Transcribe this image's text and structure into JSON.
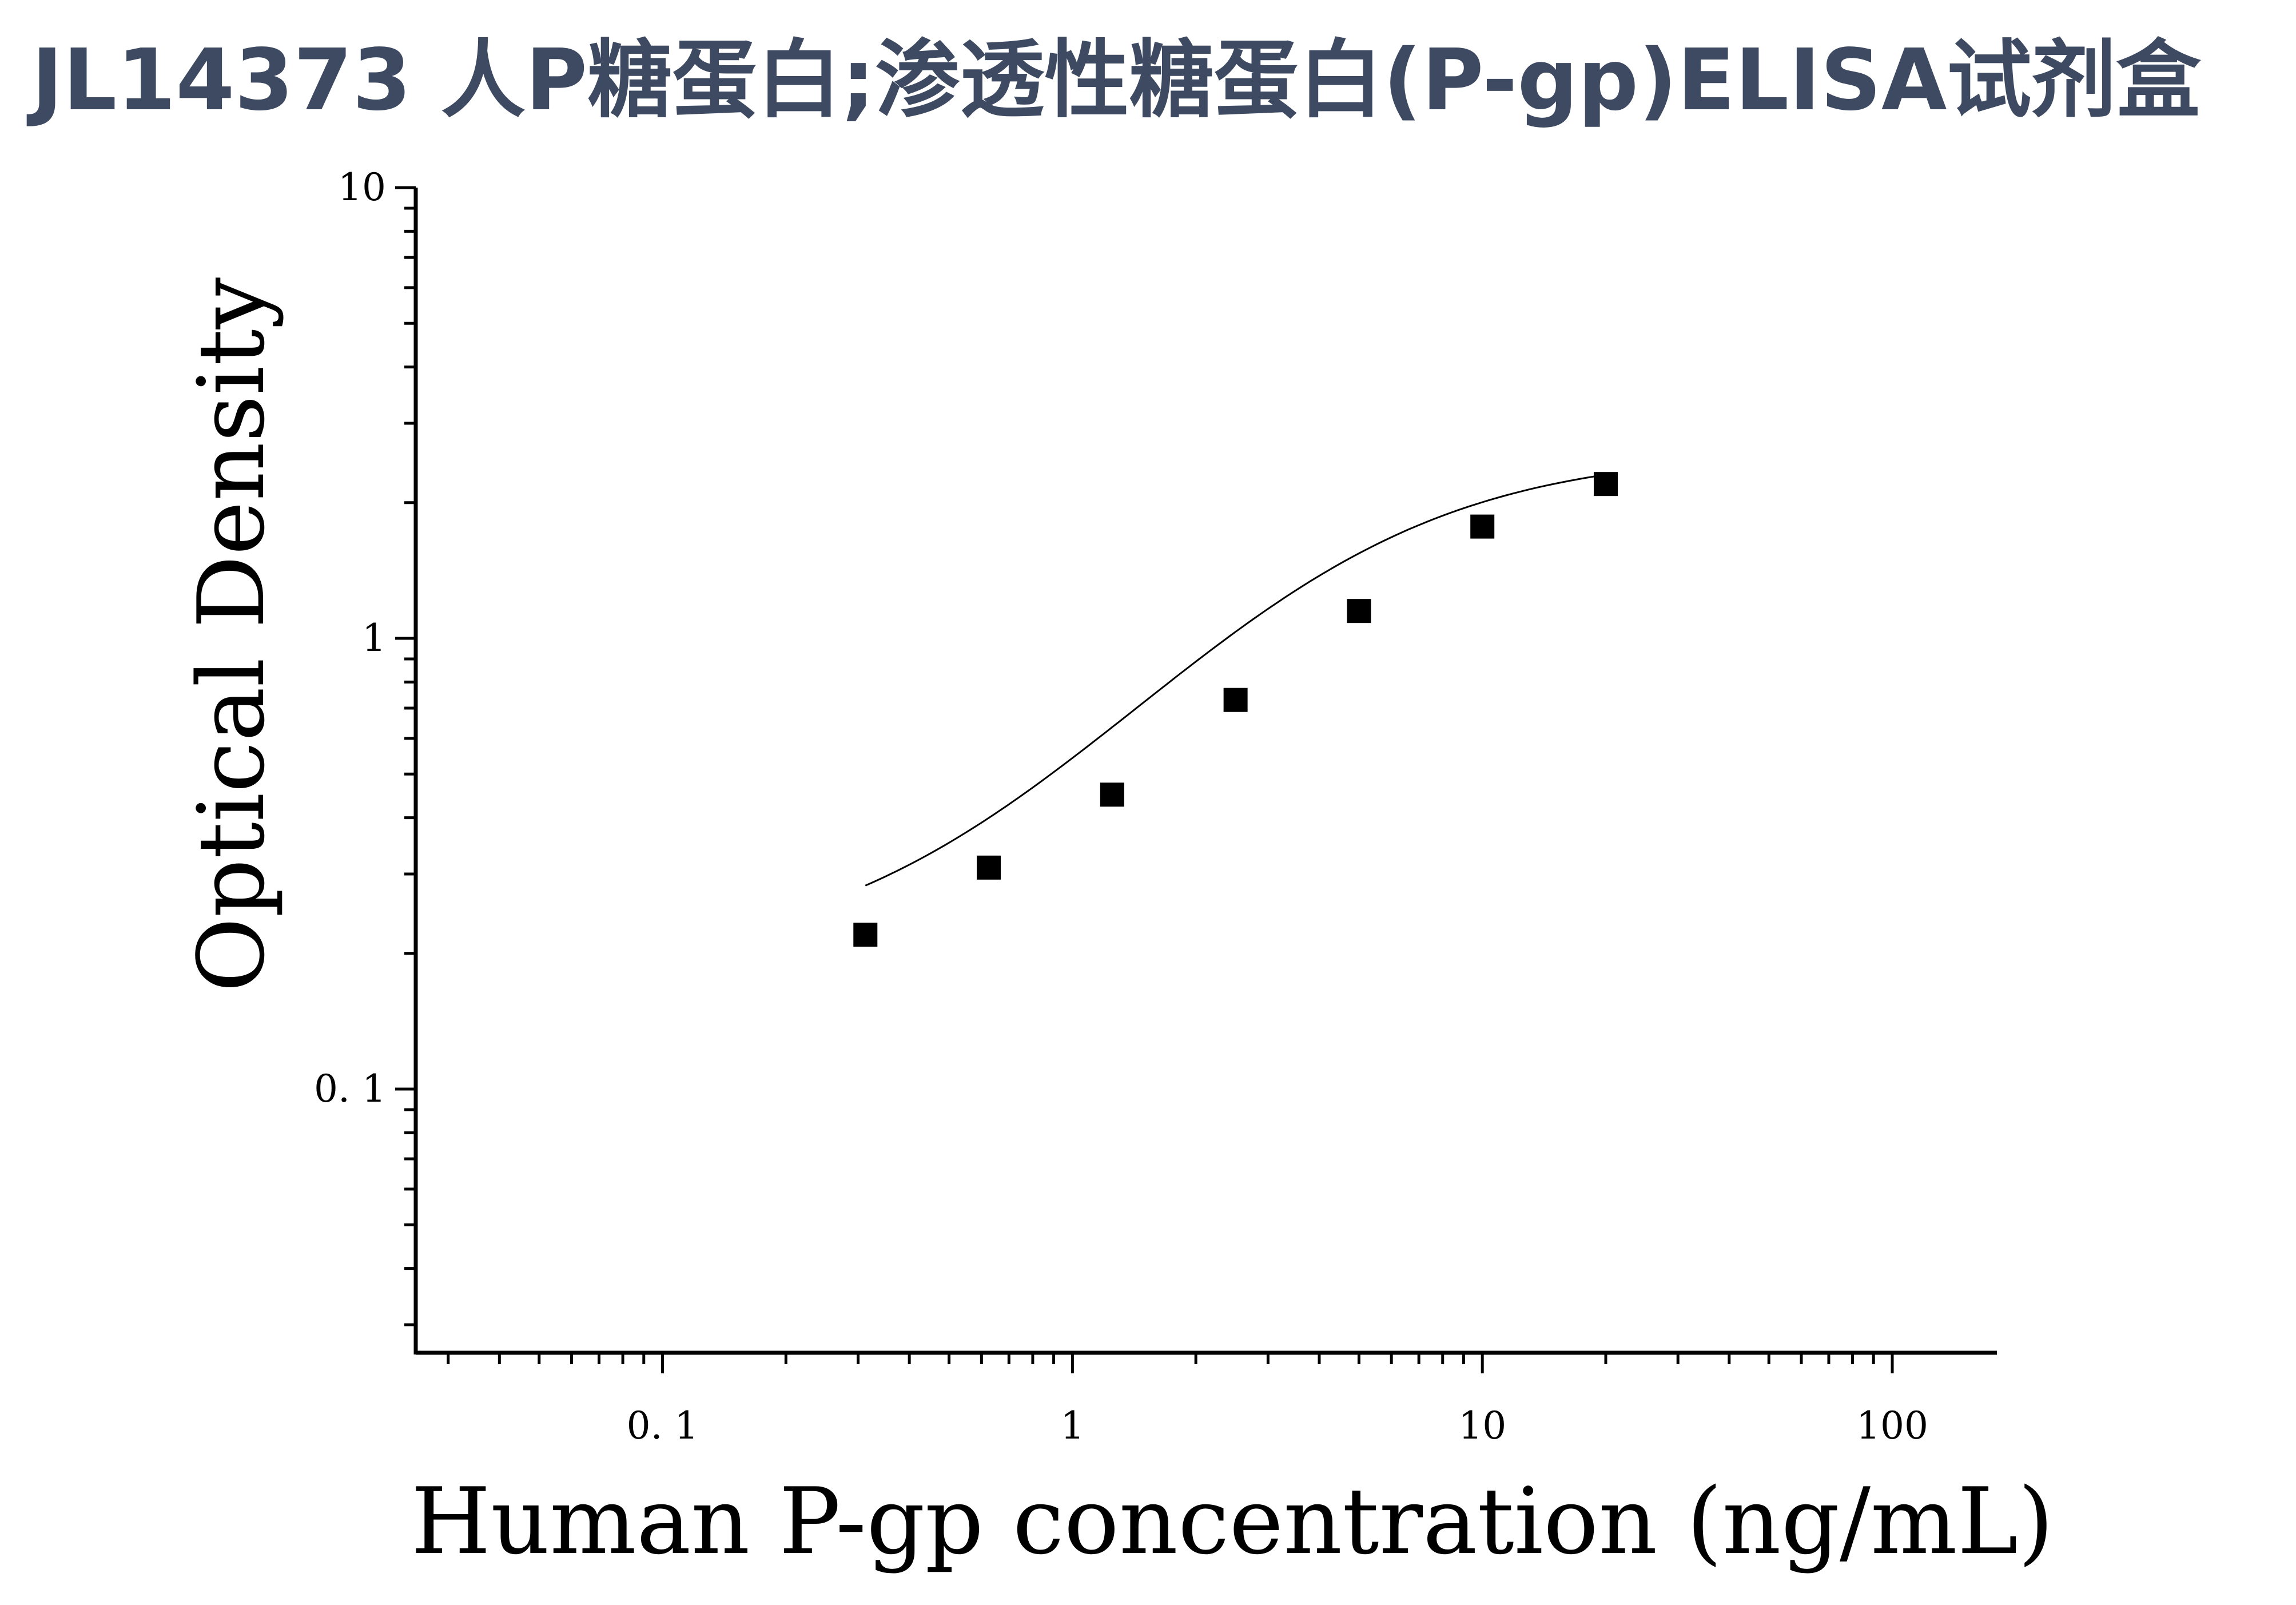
{
  "page": {
    "title": "JL14373 人P糖蛋白;渗透性糖蛋白(P-gp)ELISA试剂盒",
    "title_color": "#3d4a61"
  },
  "chart_data": {
    "type": "scatter",
    "title": "JL14373 人P糖蛋白;渗透性糖蛋白(P-gp)ELISA试剂盒",
    "xlabel": "Human P-gp concentration (ng/mL)",
    "ylabel": "Optical Density",
    "x_scale": "log",
    "y_scale": "log",
    "xlim": [
      0.025,
      180
    ],
    "ylim": [
      0.026,
      10
    ],
    "x_ticks": [
      {
        "value": 0.1,
        "label": "0. 1"
      },
      {
        "value": 1,
        "label": "1"
      },
      {
        "value": 10,
        "label": "10"
      },
      {
        "value": 100,
        "label": "100"
      }
    ],
    "y_ticks": [
      {
        "value": 0.1,
        "label": "0. 1"
      },
      {
        "value": 1,
        "label": "1"
      },
      {
        "value": 10,
        "label": "10"
      }
    ],
    "grid": false,
    "marker": "square",
    "color": "#000000",
    "points": [
      {
        "x": 0.3125,
        "y": 0.22
      },
      {
        "x": 0.625,
        "y": 0.31
      },
      {
        "x": 1.25,
        "y": 0.45
      },
      {
        "x": 2.5,
        "y": 0.73
      },
      {
        "x": 5,
        "y": 1.15
      },
      {
        "x": 10,
        "y": 1.77
      },
      {
        "x": 20,
        "y": 2.2
      }
    ],
    "fit_curve": {
      "type": "four-parameter-logistic",
      "bottom": 0.19,
      "top": 2.6,
      "ec50": 4.1,
      "hill": 1.25,
      "x_range": [
        0.3125,
        20
      ]
    }
  }
}
